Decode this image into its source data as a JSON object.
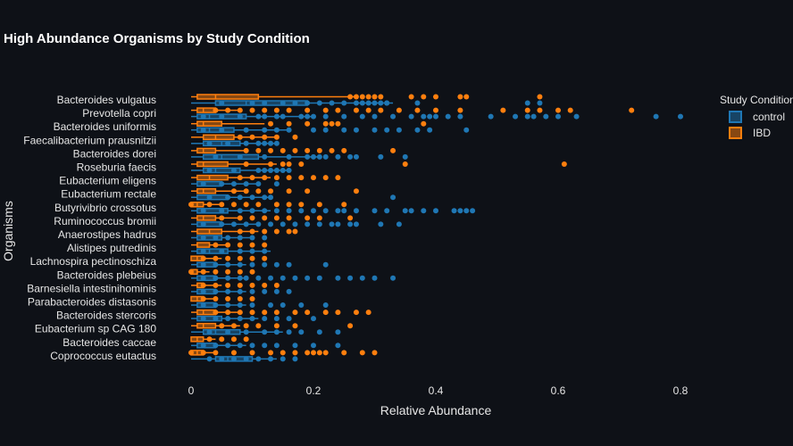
{
  "chart_data": {
    "type": "box-with-points",
    "orientation": "horizontal",
    "title": "High Abundance Organisms by Study Condition",
    "xlabel": "Relative Abundance",
    "ylabel": "Organisms",
    "xlim": [
      -0.02,
      0.88
    ],
    "x_ticks": [
      0,
      0.2,
      0.4,
      0.6,
      0.8
    ],
    "x_tick_labels": [
      "0",
      "0.2",
      "0.4",
      "0.6",
      "0.8"
    ],
    "grid": false,
    "legend": {
      "title": "Study Condition",
      "placement": "top-right"
    },
    "categories": [
      "Bacteroides vulgatus",
      "Prevotella copri",
      "Bacteroides uniformis",
      "Faecalibacterium prausnitzii",
      "Bacteroides dorei",
      "Roseburia faecis",
      "Eubacterium eligens",
      "Eubacterium rectale",
      "Butyrivibrio crossotus",
      "Ruminococcus bromii",
      "Anaerostipes hadrus",
      "Alistipes putredinis",
      "Lachnospira pectinoschiza",
      "Bacteroides plebeius",
      "Barnesiella intestinihominis",
      "Parabacteroides distasonis",
      "Bacteroides stercoris",
      "Eubacterium sp CAG 180",
      "Bacteroides caccae",
      "Coprococcus eutactus"
    ],
    "series": [
      {
        "name": "control",
        "color": "#1f77b4",
        "boxes": [
          [
            0.0,
            0.04,
            0.09,
            0.19,
            0.33
          ],
          [
            0.0,
            0.01,
            0.03,
            0.09,
            0.2
          ],
          [
            0.0,
            0.01,
            0.03,
            0.07,
            0.16
          ],
          [
            0.0,
            0.02,
            0.05,
            0.08,
            0.14
          ],
          [
            0.0,
            0.02,
            0.05,
            0.11,
            0.21
          ],
          [
            0.0,
            0.02,
            0.04,
            0.08,
            0.16
          ],
          [
            0.0,
            0.01,
            0.02,
            0.05,
            0.11
          ],
          [
            0.0,
            0.01,
            0.03,
            0.06,
            0.13
          ],
          [
            0.0,
            0.01,
            0.02,
            0.06,
            0.13
          ],
          [
            0.0,
            0.01,
            0.02,
            0.05,
            0.11
          ],
          [
            0.0,
            0.01,
            0.02,
            0.05,
            0.1
          ],
          [
            0.0,
            0.01,
            0.03,
            0.06,
            0.13
          ],
          [
            0.0,
            0.01,
            0.02,
            0.04,
            0.09
          ],
          [
            0.0,
            0.01,
            0.02,
            0.04,
            0.09
          ],
          [
            0.0,
            0.01,
            0.02,
            0.04,
            0.09
          ],
          [
            0.0,
            0.01,
            0.02,
            0.04,
            0.09
          ],
          [
            0.0,
            0.01,
            0.02,
            0.05,
            0.11
          ],
          [
            0.0,
            0.02,
            0.04,
            0.08,
            0.15
          ],
          [
            0.0,
            0.01,
            0.02,
            0.04,
            0.09
          ],
          [
            0.0,
            0.04,
            0.06,
            0.1,
            0.14
          ]
        ],
        "points": [
          [
            0.05,
            0.1,
            0.12,
            0.15,
            0.17,
            0.19,
            0.21,
            0.23,
            0.25,
            0.27,
            0.28,
            0.29,
            0.3,
            0.31,
            0.32,
            0.32,
            0.37,
            0.55,
            0.57
          ],
          [
            0.02,
            0.05,
            0.08,
            0.11,
            0.12,
            0.14,
            0.15,
            0.18,
            0.19,
            0.2,
            0.22,
            0.25,
            0.28,
            0.3,
            0.33,
            0.36,
            0.38,
            0.39,
            0.4,
            0.42,
            0.44,
            0.49,
            0.53,
            0.55,
            0.56,
            0.58,
            0.6,
            0.63,
            0.76,
            0.8
          ],
          [
            0.02,
            0.05,
            0.09,
            0.12,
            0.14,
            0.16,
            0.2,
            0.22,
            0.25,
            0.27,
            0.3,
            0.32,
            0.34,
            0.37,
            0.39,
            0.45
          ],
          [
            0.03,
            0.06,
            0.09,
            0.11,
            0.12,
            0.13,
            0.14
          ],
          [
            0.04,
            0.08,
            0.12,
            0.16,
            0.19,
            0.2,
            0.21,
            0.22,
            0.24,
            0.26,
            0.27,
            0.31,
            0.35
          ],
          [
            0.03,
            0.07,
            0.11,
            0.12,
            0.13,
            0.14,
            0.15,
            0.16
          ],
          [
            0.02,
            0.05,
            0.07,
            0.09,
            0.11,
            0.14
          ],
          [
            0.03,
            0.06,
            0.08,
            0.1,
            0.12,
            0.13,
            0.33
          ],
          [
            0.02,
            0.05,
            0.08,
            0.1,
            0.12,
            0.14,
            0.16,
            0.18,
            0.2,
            0.22,
            0.24,
            0.25,
            0.27,
            0.3,
            0.32,
            0.35,
            0.36,
            0.38,
            0.4,
            0.43,
            0.44,
            0.45,
            0.46
          ],
          [
            0.02,
            0.05,
            0.07,
            0.09,
            0.11,
            0.13,
            0.15,
            0.17,
            0.19,
            0.21,
            0.23,
            0.24,
            0.26,
            0.27,
            0.31,
            0.34
          ],
          [
            0.02,
            0.04,
            0.06,
            0.08,
            0.1,
            0.12
          ],
          [
            0.02,
            0.05,
            0.08,
            0.1,
            0.12
          ],
          [
            0.02,
            0.04,
            0.06,
            0.08,
            0.1,
            0.12,
            0.14,
            0.16,
            0.22
          ],
          [
            0.02,
            0.04,
            0.06,
            0.08,
            0.09,
            0.11,
            0.13,
            0.15,
            0.17,
            0.19,
            0.21,
            0.24,
            0.26,
            0.28,
            0.3,
            0.33
          ],
          [
            0.02,
            0.04,
            0.06,
            0.08,
            0.1,
            0.12,
            0.14,
            0.16
          ],
          [
            0.02,
            0.04,
            0.06,
            0.08,
            0.1,
            0.13,
            0.15,
            0.18,
            0.22
          ],
          [
            0.02,
            0.04,
            0.06,
            0.08,
            0.1,
            0.12,
            0.14,
            0.16,
            0.2
          ],
          [
            0.03,
            0.06,
            0.09,
            0.12,
            0.14,
            0.16,
            0.18,
            0.21,
            0.24
          ],
          [
            0.02,
            0.04,
            0.06,
            0.08,
            0.1,
            0.12,
            0.14,
            0.17,
            0.2,
            0.24
          ],
          [
            0.03,
            0.05,
            0.07,
            0.09,
            0.11,
            0.13,
            0.15,
            0.17
          ]
        ]
      },
      {
        "name": "IBD",
        "color": "#ff7f0e",
        "boxes": [
          [
            0.0,
            0.01,
            0.04,
            0.11,
            0.27
          ],
          [
            0.0,
            0.01,
            0.02,
            0.04,
            0.08
          ],
          [
            0.0,
            0.01,
            0.02,
            0.05,
            0.12
          ],
          [
            0.0,
            0.02,
            0.04,
            0.07,
            0.14
          ],
          [
            0.0,
            0.01,
            0.02,
            0.04,
            0.09
          ],
          [
            0.0,
            0.01,
            0.02,
            0.06,
            0.14
          ],
          [
            0.0,
            0.01,
            0.03,
            0.06,
            0.13
          ],
          [
            0.0,
            0.01,
            0.02,
            0.04,
            0.09
          ],
          [
            0.0,
            0.0,
            0.01,
            0.02,
            0.05
          ],
          [
            0.0,
            0.01,
            0.02,
            0.04,
            0.08
          ],
          [
            0.0,
            0.01,
            0.03,
            0.05,
            0.11
          ],
          [
            0.0,
            0.01,
            0.01,
            0.03,
            0.06
          ],
          [
            0.0,
            0.0,
            0.01,
            0.02,
            0.05
          ],
          [
            0.0,
            0.0,
            0.01,
            0.01,
            0.03
          ],
          [
            0.0,
            0.01,
            0.01,
            0.02,
            0.05
          ],
          [
            0.0,
            0.0,
            0.01,
            0.02,
            0.04
          ],
          [
            0.0,
            0.01,
            0.02,
            0.04,
            0.08
          ],
          [
            0.0,
            0.01,
            0.02,
            0.04,
            0.08
          ],
          [
            0.0,
            0.0,
            0.01,
            0.02,
            0.04
          ],
          [
            0.0,
            0.0,
            0.01,
            0.02,
            0.04
          ]
        ],
        "points": [
          [
            0.26,
            0.27,
            0.28,
            0.29,
            0.3,
            0.31,
            0.36,
            0.38,
            0.4,
            0.44,
            0.45,
            0.57
          ],
          [
            0.04,
            0.06,
            0.08,
            0.1,
            0.12,
            0.14,
            0.16,
            0.19,
            0.22,
            0.24,
            0.27,
            0.29,
            0.31,
            0.34,
            0.37,
            0.4,
            0.44,
            0.51,
            0.55,
            0.57,
            0.6,
            0.62,
            0.72
          ],
          [
            0.13,
            0.16,
            0.19,
            0.22,
            0.23,
            0.24,
            0.38
          ],
          [
            0.08,
            0.1,
            0.12,
            0.14,
            0.17
          ],
          [
            0.09,
            0.11,
            0.13,
            0.15,
            0.17,
            0.19,
            0.21,
            0.23,
            0.25,
            0.33
          ],
          [
            0.09,
            0.13,
            0.15,
            0.16,
            0.18,
            0.35,
            0.61
          ],
          [
            0.08,
            0.1,
            0.12,
            0.14,
            0.16,
            0.18,
            0.2,
            0.22,
            0.24
          ],
          [
            0.07,
            0.09,
            0.11,
            0.13,
            0.16,
            0.19,
            0.27
          ],
          [
            0.0,
            0.03,
            0.05,
            0.07,
            0.09,
            0.11,
            0.14,
            0.16,
            0.18,
            0.21,
            0.25
          ],
          [
            0.05,
            0.08,
            0.1,
            0.12,
            0.14,
            0.16,
            0.19,
            0.21,
            0.26
          ],
          [
            0.08,
            0.1,
            0.12,
            0.14,
            0.16,
            0.17
          ],
          [
            0.04,
            0.06,
            0.08,
            0.1,
            0.12
          ],
          [
            0.02,
            0.04,
            0.06,
            0.08,
            0.1,
            0.12
          ],
          [
            0.0,
            0.02,
            0.04,
            0.06,
            0.08,
            0.1
          ],
          [
            0.02,
            0.04,
            0.06,
            0.08,
            0.1,
            0.12,
            0.14
          ],
          [
            0.02,
            0.04,
            0.06,
            0.08,
            0.1
          ],
          [
            0.04,
            0.06,
            0.08,
            0.1,
            0.12,
            0.14,
            0.17,
            0.19,
            0.22,
            0.24,
            0.27,
            0.29
          ],
          [
            0.05,
            0.07,
            0.09,
            0.11,
            0.14,
            0.17,
            0.26
          ],
          [
            0.03,
            0.05,
            0.07,
            0.09
          ],
          [
            0.0,
            0.02,
            0.04,
            0.07,
            0.1,
            0.13,
            0.15,
            0.17,
            0.19,
            0.2,
            0.21,
            0.22,
            0.25,
            0.28,
            0.3
          ]
        ]
      }
    ]
  }
}
